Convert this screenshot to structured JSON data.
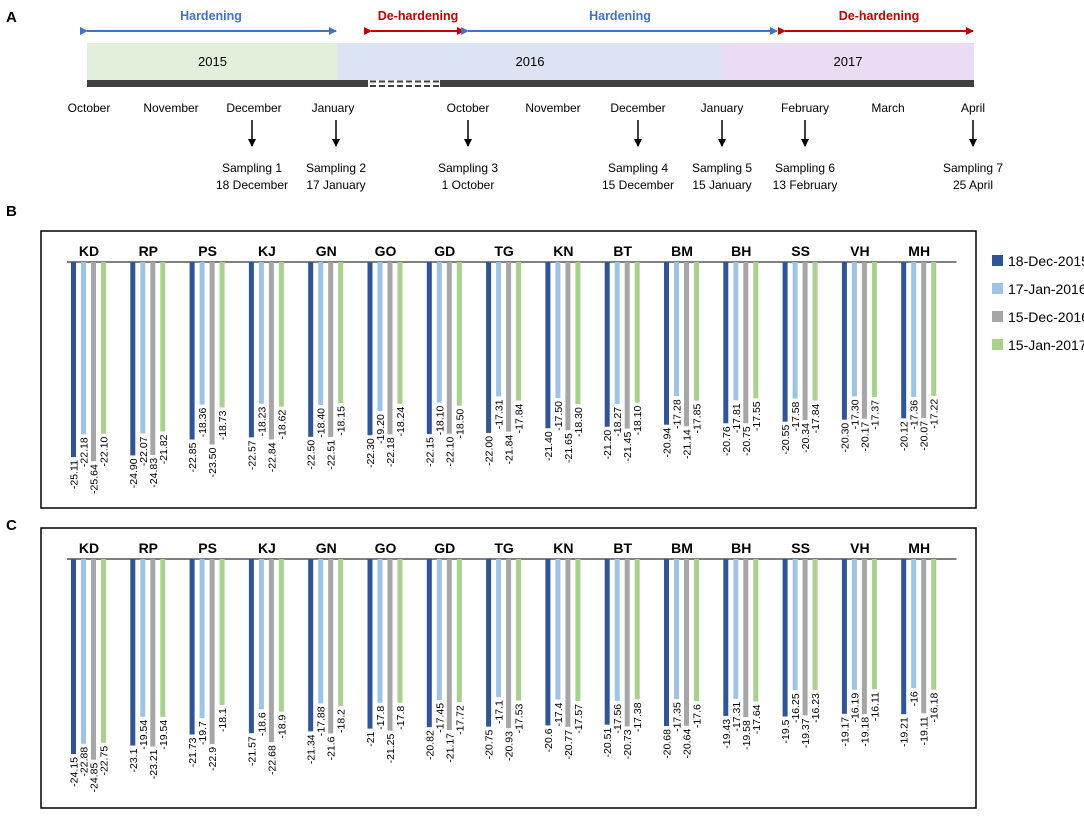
{
  "panel_labels": {
    "a": "A",
    "b": "B",
    "c": "C"
  },
  "timeline": {
    "phases": [
      {
        "label": "Hardening",
        "color": "#4472C4"
      },
      {
        "label": "De-hardening",
        "color": "#C00000"
      },
      {
        "label": "Hardening",
        "color": "#4472C4"
      },
      {
        "label": "De-hardening",
        "color": "#C00000"
      }
    ],
    "years": [
      {
        "label": "2015",
        "color": "#E2EFDA"
      },
      {
        "label": "2016",
        "color": "#DCE3F2"
      },
      {
        "label": "2017",
        "color": "#EADCF2"
      }
    ],
    "months": [
      "October",
      "November",
      "December",
      "January",
      "October",
      "November",
      "December",
      "January",
      "February",
      "March",
      "April"
    ],
    "samplings": [
      {
        "title": "Sampling 1",
        "date": "18 December"
      },
      {
        "title": "Sampling 2",
        "date": "17 January"
      },
      {
        "title": "Sampling 3",
        "date": "1 October"
      },
      {
        "title": "Sampling 4",
        "date": "15 December"
      },
      {
        "title": "Sampling 5",
        "date": "15 January"
      },
      {
        "title": "Sampling 6",
        "date": "13 February"
      },
      {
        "title": "Sampling 7",
        "date": "25 April"
      }
    ]
  },
  "legend": [
    {
      "label": "18-Dec-2015",
      "color": "#2F5597"
    },
    {
      "label": "17-Jan-2016",
      "color": "#9DC3E6"
    },
    {
      "label": "15-Dec-2016",
      "color": "#A6A6A6"
    },
    {
      "label": "15-Jan-2017",
      "color": "#A9D18E"
    }
  ],
  "chart_data": [
    {
      "type": "bar",
      "panel": "B",
      "categories": [
        "KD",
        "RP",
        "PS",
        "KJ",
        "GN",
        "GO",
        "GD",
        "TG",
        "KN",
        "BT",
        "BM",
        "BH",
        "SS",
        "VH",
        "MH"
      ],
      "series": [
        {
          "name": "18-Dec-2015",
          "values": [
            "-25.11",
            "-24.90",
            "-22.85",
            "-22.57",
            "-22.50",
            "-22.30",
            "-22.15",
            "-22.00",
            "-21.40",
            "-21.20",
            "-20.94",
            "-20.76",
            "-20.55",
            "-20.30",
            "-20.12"
          ]
        },
        {
          "name": "17-Jan-2016",
          "values": [
            "-22.18",
            "-22.07",
            "-18.36",
            "-18.23",
            "-18.40",
            "-19.20",
            "-18.10",
            "-17.31",
            "-17.50",
            "-18.27",
            "-17.28",
            "-17.81",
            "-17.58",
            "-17.30",
            "-17.36"
          ]
        },
        {
          "name": "15-Dec-2016",
          "values": [
            "-25.64",
            "-24.83",
            "-23.50",
            "-22.84",
            "-22.51",
            "-22.18",
            "-22.10",
            "-21.84",
            "-21.65",
            "-21.45",
            "-21.14",
            "-20.75",
            "-20.34",
            "-20.17",
            "-20.07"
          ]
        },
        {
          "name": "15-Jan-2017",
          "values": [
            "-22.10",
            "-21.82",
            "-18.73",
            "-18.62",
            "-18.15",
            "-18.24",
            "-18.50",
            "-17.84",
            "-18.30",
            "-18.10",
            "-17.85",
            "-17.55",
            "-17.84",
            "-17.37",
            "-17.22"
          ]
        }
      ],
      "ylim": [
        -26,
        0
      ]
    },
    {
      "type": "bar",
      "panel": "C",
      "categories": [
        "KD",
        "RP",
        "PS",
        "KJ",
        "GN",
        "GO",
        "GD",
        "TG",
        "KN",
        "BT",
        "BM",
        "BH",
        "SS",
        "VH",
        "MH"
      ],
      "series": [
        {
          "name": "18-Dec-2015",
          "values": [
            "-24.15",
            "-23.1",
            "-21.73",
            "-21.57",
            "-21.34",
            "-21",
            "-20.82",
            "-20.75",
            "-20.6",
            "-20.51",
            "-20.68",
            "-19.43",
            "-19.5",
            "-19.17",
            "-19.21"
          ]
        },
        {
          "name": "17-Jan-2016",
          "values": [
            "-22.88",
            "-19.54",
            "-19.7",
            "-18.6",
            "-17.88",
            "-17.8",
            "-17.45",
            "-17.1",
            "-17.4",
            "-17.56",
            "-17.35",
            "-17.31",
            "-16.25",
            "-16.19",
            "-16"
          ]
        },
        {
          "name": "15-Dec-2016",
          "values": [
            "-24.85",
            "-23.21",
            "-22.9",
            "-22.68",
            "-21.6",
            "-21.25",
            "-21.17",
            "-20.93",
            "-20.77",
            "-20.73",
            "-20.64",
            "-19.58",
            "-19.37",
            "-19.18",
            "-19.11"
          ]
        },
        {
          "name": "15-Jan-2017",
          "values": [
            "-22.75",
            "-19.54",
            "-18.1",
            "-18.9",
            "-18.2",
            "-17.8",
            "-17.72",
            "-17.53",
            "-17.57",
            "-17.38",
            "-17.6",
            "-17.64",
            "-16.23",
            "-16.11",
            "-16.18"
          ]
        }
      ],
      "ylim": [
        -26,
        0
      ]
    }
  ]
}
